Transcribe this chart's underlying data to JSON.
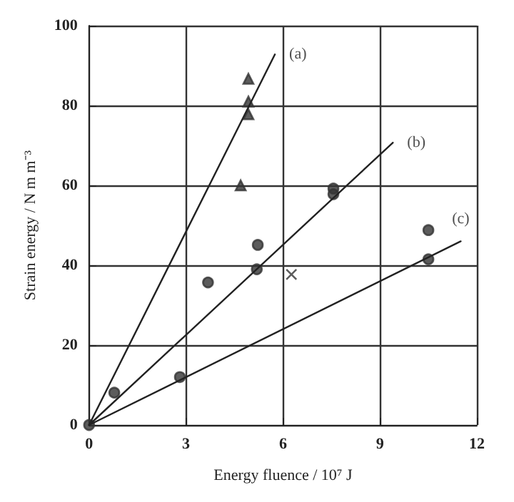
{
  "chart_data": {
    "type": "scatter",
    "xlabel": "Energy fluence / 10⁷ J",
    "ylabel": "Strain energy / N m m⁻³",
    "xlim": [
      0,
      12
    ],
    "ylim": [
      0,
      100
    ],
    "xticks": [
      0,
      3,
      6,
      9,
      12
    ],
    "yticks": [
      0,
      20,
      40,
      60,
      80,
      100
    ],
    "grid": true,
    "series": [
      {
        "type": "line",
        "color": "#222222",
        "marker": "none",
        "line_style": "solid",
        "x": [
          0,
          5.75
        ],
        "values": [
          0,
          92.8
        ]
      },
      {
        "type": "line",
        "color": "#222222",
        "marker": "none",
        "line_style": "solid",
        "x": [
          0,
          9.4
        ],
        "values": [
          0,
          70.7
        ]
      },
      {
        "type": "line",
        "color": "#222222",
        "marker": "none",
        "line_style": "solid",
        "x": [
          0,
          11.5
        ],
        "values": [
          0,
          46
        ]
      },
      {
        "color": "#333333",
        "marker": "triangle",
        "x": [
          4.93,
          4.93,
          4.93,
          4.69
        ],
        "values": [
          86.7,
          81,
          77.8,
          60
        ]
      },
      {
        "color": "#333333",
        "marker": "circle",
        "x": [
          0,
          0.78,
          3.68,
          5.22,
          5.19,
          7.56,
          7.56,
          2.81,
          10.5,
          10.5
        ],
        "values": [
          0,
          8.1,
          35.7,
          45.1,
          39,
          59.2,
          57.8,
          12,
          48.8,
          41.5
        ]
      },
      {
        "color": "#333333",
        "marker": "cross",
        "x": [
          6.26
        ],
        "values": [
          37.7
        ]
      }
    ],
    "annotations": [
      {
        "text": "(a)",
        "x": 5.75,
        "y": 92.8
      },
      {
        "text": "(b)",
        "x": 9.4,
        "y": 70.7
      },
      {
        "text": "(c)",
        "x": 11.5,
        "y": 46
      }
    ]
  }
}
